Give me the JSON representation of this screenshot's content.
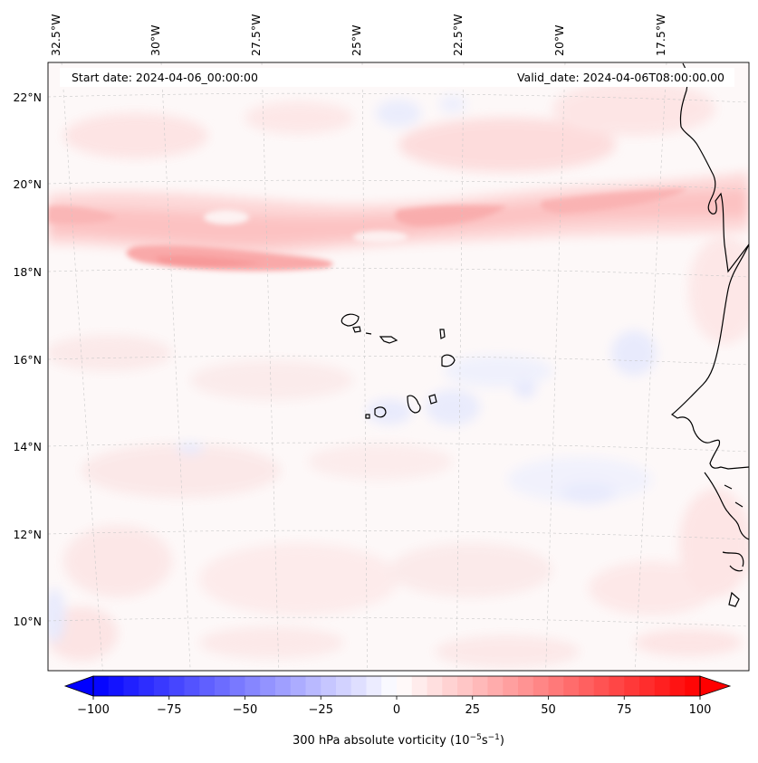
{
  "map": {
    "start_date": "Start date: 2024-04-06_00:00:00",
    "valid_date": "Valid_date: 2024-04-06T08:00:00.00",
    "lon_labels": [
      "32.5°W",
      "30°W",
      "27.5°W",
      "25°W",
      "22.5°W",
      "20°W",
      "17.5°W"
    ],
    "lat_labels": [
      "22°N",
      "20°N",
      "18°N",
      "16°N",
      "14°N",
      "12°N",
      "10°N"
    ],
    "colorbar": {
      "ticks": [
        "−100",
        "−75",
        "−50",
        "−25",
        "0",
        "25",
        "50",
        "75",
        "100"
      ],
      "label_main": "300 hPa absolute vorticity (10",
      "label_exp1": "−5",
      "label_mid": "s",
      "label_exp2": "−1",
      "label_end": ")",
      "min": -100,
      "max": 100,
      "cmap": "bwr",
      "extend": "both"
    },
    "colors": {
      "coastline": "#000000",
      "gridline": "#bfbfbf",
      "negative": "#0000ff",
      "positive": "#ff0000"
    }
  }
}
